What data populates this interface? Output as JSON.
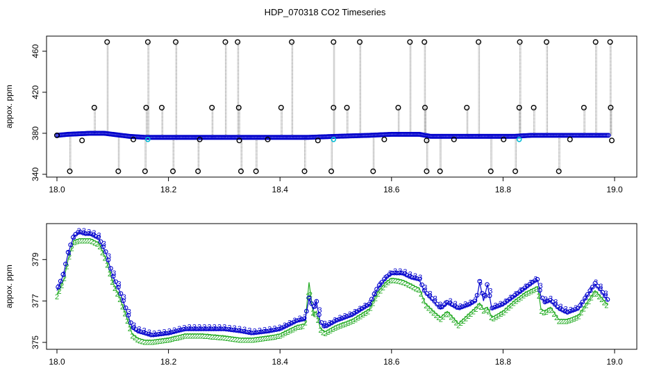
{
  "title": "HDP_070318  CO2 Timeseries",
  "colors": {
    "outlier": "#000000",
    "series3": "#0000cc",
    "series2": "#22aa22",
    "cyan": "#00bcd4",
    "spike": "#888888"
  },
  "chart_data": [
    {
      "type": "scatter",
      "ylabel": "appox. ppm",
      "xlim": [
        18.0,
        19.0
      ],
      "ylim": [
        340,
        470
      ],
      "xticks": [
        "18.0",
        "18.2",
        "18.4",
        "18.6",
        "18.8",
        "19.0"
      ],
      "xtick_values": [
        18.0,
        18.2,
        18.4,
        18.6,
        18.8,
        19.0
      ],
      "yticks": [
        "340",
        "380",
        "420",
        "460"
      ],
      "ytick_values": [
        340,
        380,
        420,
        460
      ],
      "baseline": [
        [
          18.0,
          378
        ],
        [
          18.02,
          379
        ],
        [
          18.06,
          380
        ],
        [
          18.085,
          380
        ],
        [
          18.1,
          379
        ],
        [
          18.13,
          377
        ],
        [
          18.16,
          376
        ],
        [
          18.3,
          376
        ],
        [
          18.45,
          376
        ],
        [
          18.5,
          377
        ],
        [
          18.56,
          378
        ],
        [
          18.6,
          379
        ],
        [
          18.65,
          379
        ],
        [
          18.67,
          377
        ],
        [
          18.82,
          377
        ],
        [
          18.85,
          378
        ],
        [
          18.99,
          378
        ]
      ],
      "outliers_high": [
        18.09,
        18.163,
        18.213,
        18.302,
        18.324,
        18.421,
        18.496,
        18.543,
        18.633,
        18.659,
        18.756,
        18.83,
        18.878,
        18.966,
        18.992
      ],
      "outliers_mid": [
        18.067,
        18.16,
        18.188,
        18.278,
        18.326,
        18.402,
        18.496,
        18.52,
        18.612,
        18.66,
        18.735,
        18.829,
        18.855,
        18.945,
        18.993
      ],
      "outliers_low": [
        18.023,
        18.11,
        18.158,
        18.208,
        18.253,
        18.33,
        18.357,
        18.444,
        18.492,
        18.567,
        18.663,
        18.687,
        18.778,
        18.822,
        18.9
      ],
      "outliers_base": [
        [
          18.045,
          373
        ],
        [
          18.137,
          374
        ],
        [
          18.256,
          374
        ],
        [
          18.327,
          373
        ],
        [
          18.378,
          374
        ],
        [
          18.468,
          373
        ],
        [
          18.587,
          374
        ],
        [
          18.663,
          373
        ],
        [
          18.712,
          374
        ],
        [
          18.801,
          374
        ],
        [
          18.92,
          374
        ],
        [
          18.995,
          373
        ]
      ],
      "cyan_points": [
        [
          18.163,
          374
        ],
        [
          18.496,
          374
        ],
        [
          18.829,
          374
        ]
      ]
    },
    {
      "type": "line",
      "ylabel": "appox. ppm",
      "xlim": [
        18.0,
        19.0
      ],
      "ylim": [
        374.8,
        380.6
      ],
      "xticks": [
        "18.0",
        "18.2",
        "18.4",
        "18.6",
        "18.8",
        "19.0"
      ],
      "xtick_values": [
        18.0,
        18.2,
        18.4,
        18.6,
        18.8,
        19.0
      ],
      "yticks": [
        "375",
        "377",
        "379"
      ],
      "ytick_values": [
        375,
        377,
        379
      ],
      "series": [
        {
          "marker": "3",
          "points": [
            [
              18.0,
              377.5
            ],
            [
              18.005,
              377.8
            ],
            [
              18.012,
              378.3
            ],
            [
              18.02,
              379.3
            ],
            [
              18.03,
              380.1
            ],
            [
              18.04,
              380.3
            ],
            [
              18.05,
              380.2
            ],
            [
              18.06,
              380.2
            ],
            [
              18.075,
              380.0
            ],
            [
              18.088,
              379.3
            ],
            [
              18.1,
              378.2
            ],
            [
              18.112,
              377.5
            ],
            [
              18.125,
              376.5
            ],
            [
              18.135,
              375.7
            ],
            [
              18.145,
              375.5
            ],
            [
              18.158,
              375.4
            ],
            [
              18.17,
              375.3
            ],
            [
              18.2,
              375.4
            ],
            [
              18.23,
              375.6
            ],
            [
              18.26,
              375.6
            ],
            [
              18.3,
              375.6
            ],
            [
              18.33,
              375.5
            ],
            [
              18.35,
              375.4
            ],
            [
              18.38,
              375.5
            ],
            [
              18.4,
              375.6
            ],
            [
              18.43,
              376.0
            ],
            [
              18.445,
              376.1
            ],
            [
              18.452,
              377.1
            ],
            [
              18.46,
              376.6
            ],
            [
              18.465,
              377.0
            ],
            [
              18.472,
              376.0
            ],
            [
              18.48,
              375.7
            ],
            [
              18.5,
              376.0
            ],
            [
              18.53,
              376.3
            ],
            [
              18.56,
              376.8
            ],
            [
              18.575,
              377.6
            ],
            [
              18.59,
              378.1
            ],
            [
              18.6,
              378.3
            ],
            [
              18.62,
              378.3
            ],
            [
              18.635,
              378.1
            ],
            [
              18.65,
              378.0
            ],
            [
              18.66,
              377.4
            ],
            [
              18.675,
              377.0
            ],
            [
              18.688,
              376.6
            ],
            [
              18.7,
              376.9
            ],
            [
              18.72,
              376.6
            ],
            [
              18.74,
              376.8
            ],
            [
              18.752,
              377.0
            ],
            [
              18.758,
              377.9
            ],
            [
              18.765,
              377.0
            ],
            [
              18.772,
              377.8
            ],
            [
              18.78,
              376.6
            ],
            [
              18.8,
              376.8
            ],
            [
              18.82,
              377.2
            ],
            [
              18.84,
              377.6
            ],
            [
              18.855,
              377.9
            ],
            [
              18.862,
              378.0
            ],
            [
              18.868,
              377.2
            ],
            [
              18.875,
              376.9
            ],
            [
              18.885,
              377.0
            ],
            [
              18.9,
              376.6
            ],
            [
              18.915,
              376.4
            ],
            [
              18.935,
              376.6
            ],
            [
              18.955,
              377.4
            ],
            [
              18.965,
              377.8
            ],
            [
              18.975,
              377.5
            ],
            [
              18.988,
              377.0
            ]
          ]
        },
        {
          "marker": "2",
          "points": [
            [
              18.0,
              377.3
            ],
            [
              18.005,
              377.6
            ],
            [
              18.012,
              378.0
            ],
            [
              18.02,
              379.0
            ],
            [
              18.03,
              379.9
            ],
            [
              18.04,
              380.0
            ],
            [
              18.05,
              380.0
            ],
            [
              18.06,
              380.0
            ],
            [
              18.075,
              379.8
            ],
            [
              18.088,
              379.0
            ],
            [
              18.1,
              377.9
            ],
            [
              18.112,
              377.2
            ],
            [
              18.125,
              376.2
            ],
            [
              18.135,
              375.4
            ],
            [
              18.145,
              375.2
            ],
            [
              18.158,
              375.1
            ],
            [
              18.17,
              375.1
            ],
            [
              18.2,
              375.2
            ],
            [
              18.23,
              375.4
            ],
            [
              18.26,
              375.4
            ],
            [
              18.3,
              375.3
            ],
            [
              18.33,
              375.2
            ],
            [
              18.35,
              375.2
            ],
            [
              18.38,
              375.3
            ],
            [
              18.4,
              375.4
            ],
            [
              18.43,
              375.8
            ],
            [
              18.445,
              375.9
            ],
            [
              18.452,
              377.9
            ],
            [
              18.46,
              376.3
            ],
            [
              18.465,
              376.5
            ],
            [
              18.472,
              375.7
            ],
            [
              18.48,
              375.5
            ],
            [
              18.5,
              375.8
            ],
            [
              18.53,
              376.1
            ],
            [
              18.56,
              376.6
            ],
            [
              18.575,
              377.4
            ],
            [
              18.59,
              377.9
            ],
            [
              18.6,
              378.1
            ],
            [
              18.62,
              378.0
            ],
            [
              18.635,
              377.8
            ],
            [
              18.65,
              377.6
            ],
            [
              18.66,
              376.9
            ],
            [
              18.675,
              376.5
            ],
            [
              18.688,
              376.2
            ],
            [
              18.7,
              376.5
            ],
            [
              18.72,
              375.9
            ],
            [
              18.74,
              376.4
            ],
            [
              18.752,
              376.7
            ],
            [
              18.758,
              376.9
            ],
            [
              18.765,
              376.6
            ],
            [
              18.772,
              376.7
            ],
            [
              18.78,
              376.2
            ],
            [
              18.8,
              376.5
            ],
            [
              18.82,
              377.0
            ],
            [
              18.84,
              377.4
            ],
            [
              18.855,
              377.6
            ],
            [
              18.862,
              377.7
            ],
            [
              18.868,
              376.6
            ],
            [
              18.875,
              376.5
            ],
            [
              18.885,
              376.7
            ],
            [
              18.9,
              376.1
            ],
            [
              18.915,
              376.1
            ],
            [
              18.935,
              376.3
            ],
            [
              18.955,
              377.1
            ],
            [
              18.965,
              377.5
            ],
            [
              18.975,
              377.2
            ],
            [
              18.988,
              376.8
            ]
          ]
        }
      ]
    }
  ]
}
